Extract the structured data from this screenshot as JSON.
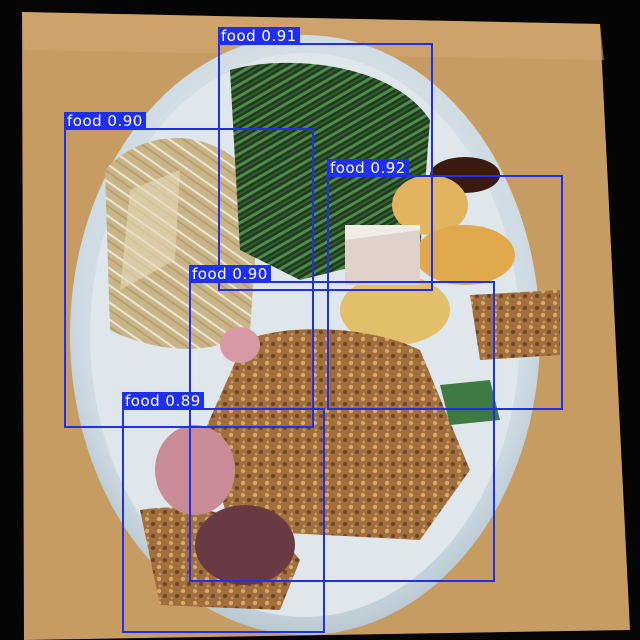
{
  "image": {
    "description_free": true,
    "colors": {
      "box": "#1f2ff0",
      "label_text": "#ffffff"
    }
  },
  "detections": [
    {
      "text": "food 0.91"
    },
    {
      "text": "food 0.90"
    },
    {
      "text": "food 0.92"
    },
    {
      "text": "food 0.90"
    },
    {
      "text": "food 0.89"
    }
  ]
}
